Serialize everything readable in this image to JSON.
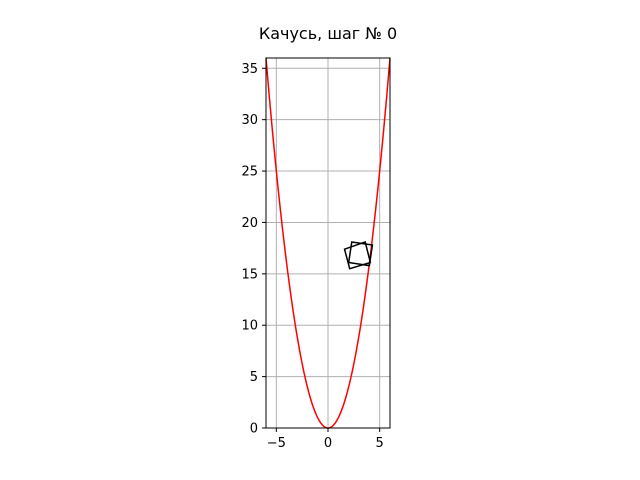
{
  "chart_data": {
    "type": "line",
    "title": "Качусь, шаг № 0",
    "xlabel": "",
    "ylabel": "",
    "xlim": [
      -6,
      6
    ],
    "ylim": [
      0,
      36
    ],
    "x_ticks": [
      -5,
      0,
      5
    ],
    "y_ticks": [
      0,
      5,
      10,
      15,
      20,
      25,
      30,
      35
    ],
    "grid": true,
    "colors": {
      "curve": "#ff0000",
      "squares": "#000000",
      "grid": "#b0b0b0"
    },
    "series": [
      {
        "function": "y = x^2",
        "color": "#ff0000",
        "x_range": [
          -6,
          6
        ]
      }
    ],
    "squares": [
      {
        "corners": [
          [
            2.3,
            18.1
          ],
          [
            4.3,
            17.8
          ],
          [
            4.0,
            15.8
          ],
          [
            2.0,
            16.1
          ]
        ]
      },
      {
        "corners": [
          [
            1.6,
            17.4
          ],
          [
            3.6,
            18.1
          ],
          [
            4.1,
            16.1
          ],
          [
            2.1,
            15.5
          ]
        ]
      }
    ]
  }
}
